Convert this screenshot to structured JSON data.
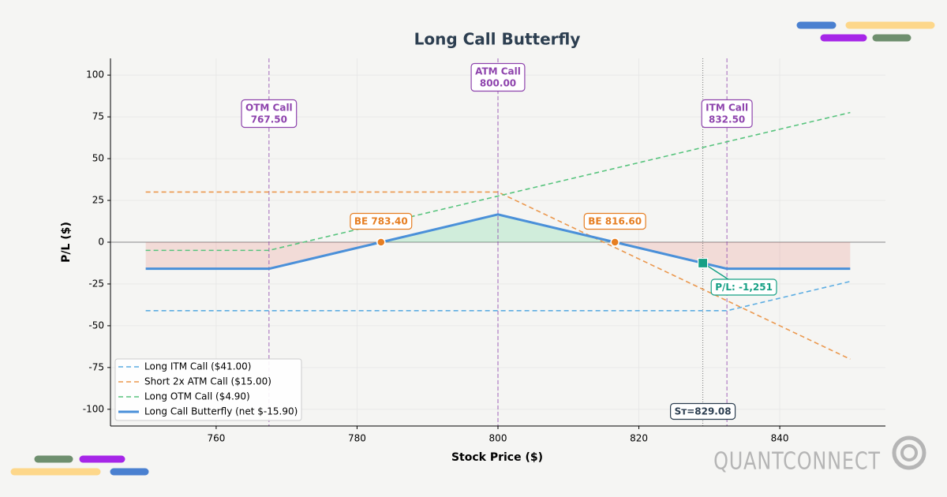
{
  "chart_data": {
    "type": "line",
    "title": "Long Call Butterfly",
    "x_label": "Stock Price ($)",
    "y_label": "P/L ($)",
    "x": [
      750,
      767.5,
      800,
      832.5,
      850
    ],
    "xlim": [
      745,
      855
    ],
    "ylim": [
      -110,
      110
    ],
    "xticks": [
      760,
      780,
      800,
      820,
      840
    ],
    "yticks": [
      -100,
      -75,
      -50,
      -25,
      0,
      25,
      50,
      75,
      100
    ],
    "grid": true,
    "legend": "lower left",
    "series": [
      {
        "name": "Long ITM Call ($41.00)",
        "color": "#5dade2",
        "linestyle": "dashed",
        "values": [
          -41,
          -41,
          -41,
          -41,
          -23.5
        ]
      },
      {
        "name": "Short 2x ATM Call ($15.00)",
        "color": "#eb984e",
        "linestyle": "dashed",
        "values": [
          30,
          30,
          30,
          -35,
          -70
        ]
      },
      {
        "name": "Long OTM Call ($4.90)",
        "color": "#58c47e",
        "linestyle": "dashed",
        "values": [
          -4.9,
          -4.9,
          27.6,
          60.1,
          77.6
        ]
      },
      {
        "name": "Long Call Butterfly (net $-15.90)",
        "color": "#4a90d9",
        "linestyle": "solid",
        "values": [
          -15.9,
          -15.9,
          16.6,
          -15.9,
          -15.9
        ]
      }
    ],
    "fill_colors": {
      "profit": "#2ecc71",
      "loss": "#e74c3c"
    },
    "strike_color": "#8e44ad",
    "strikes": [
      {
        "name": "OTM Call",
        "x": 767.5,
        "label": "767.50"
      },
      {
        "name": "ATM Call",
        "x": 800,
        "label": "800.00"
      },
      {
        "name": "ITM Call",
        "x": 832.5,
        "label": "832.50"
      }
    ],
    "breakeven_color": "#e67e22",
    "breakevens": [
      {
        "x": 783.4,
        "y": 0,
        "label": "BE 783.40"
      },
      {
        "x": 816.6,
        "y": 0,
        "label": "BE 816.60"
      }
    ],
    "current": {
      "x": 829.08,
      "y": -12.51,
      "color": "#16a085",
      "price_label": "Sᴛ=829.08",
      "pl_label": "P/L: -1,251"
    }
  },
  "brand": "QUANTCONNECT"
}
